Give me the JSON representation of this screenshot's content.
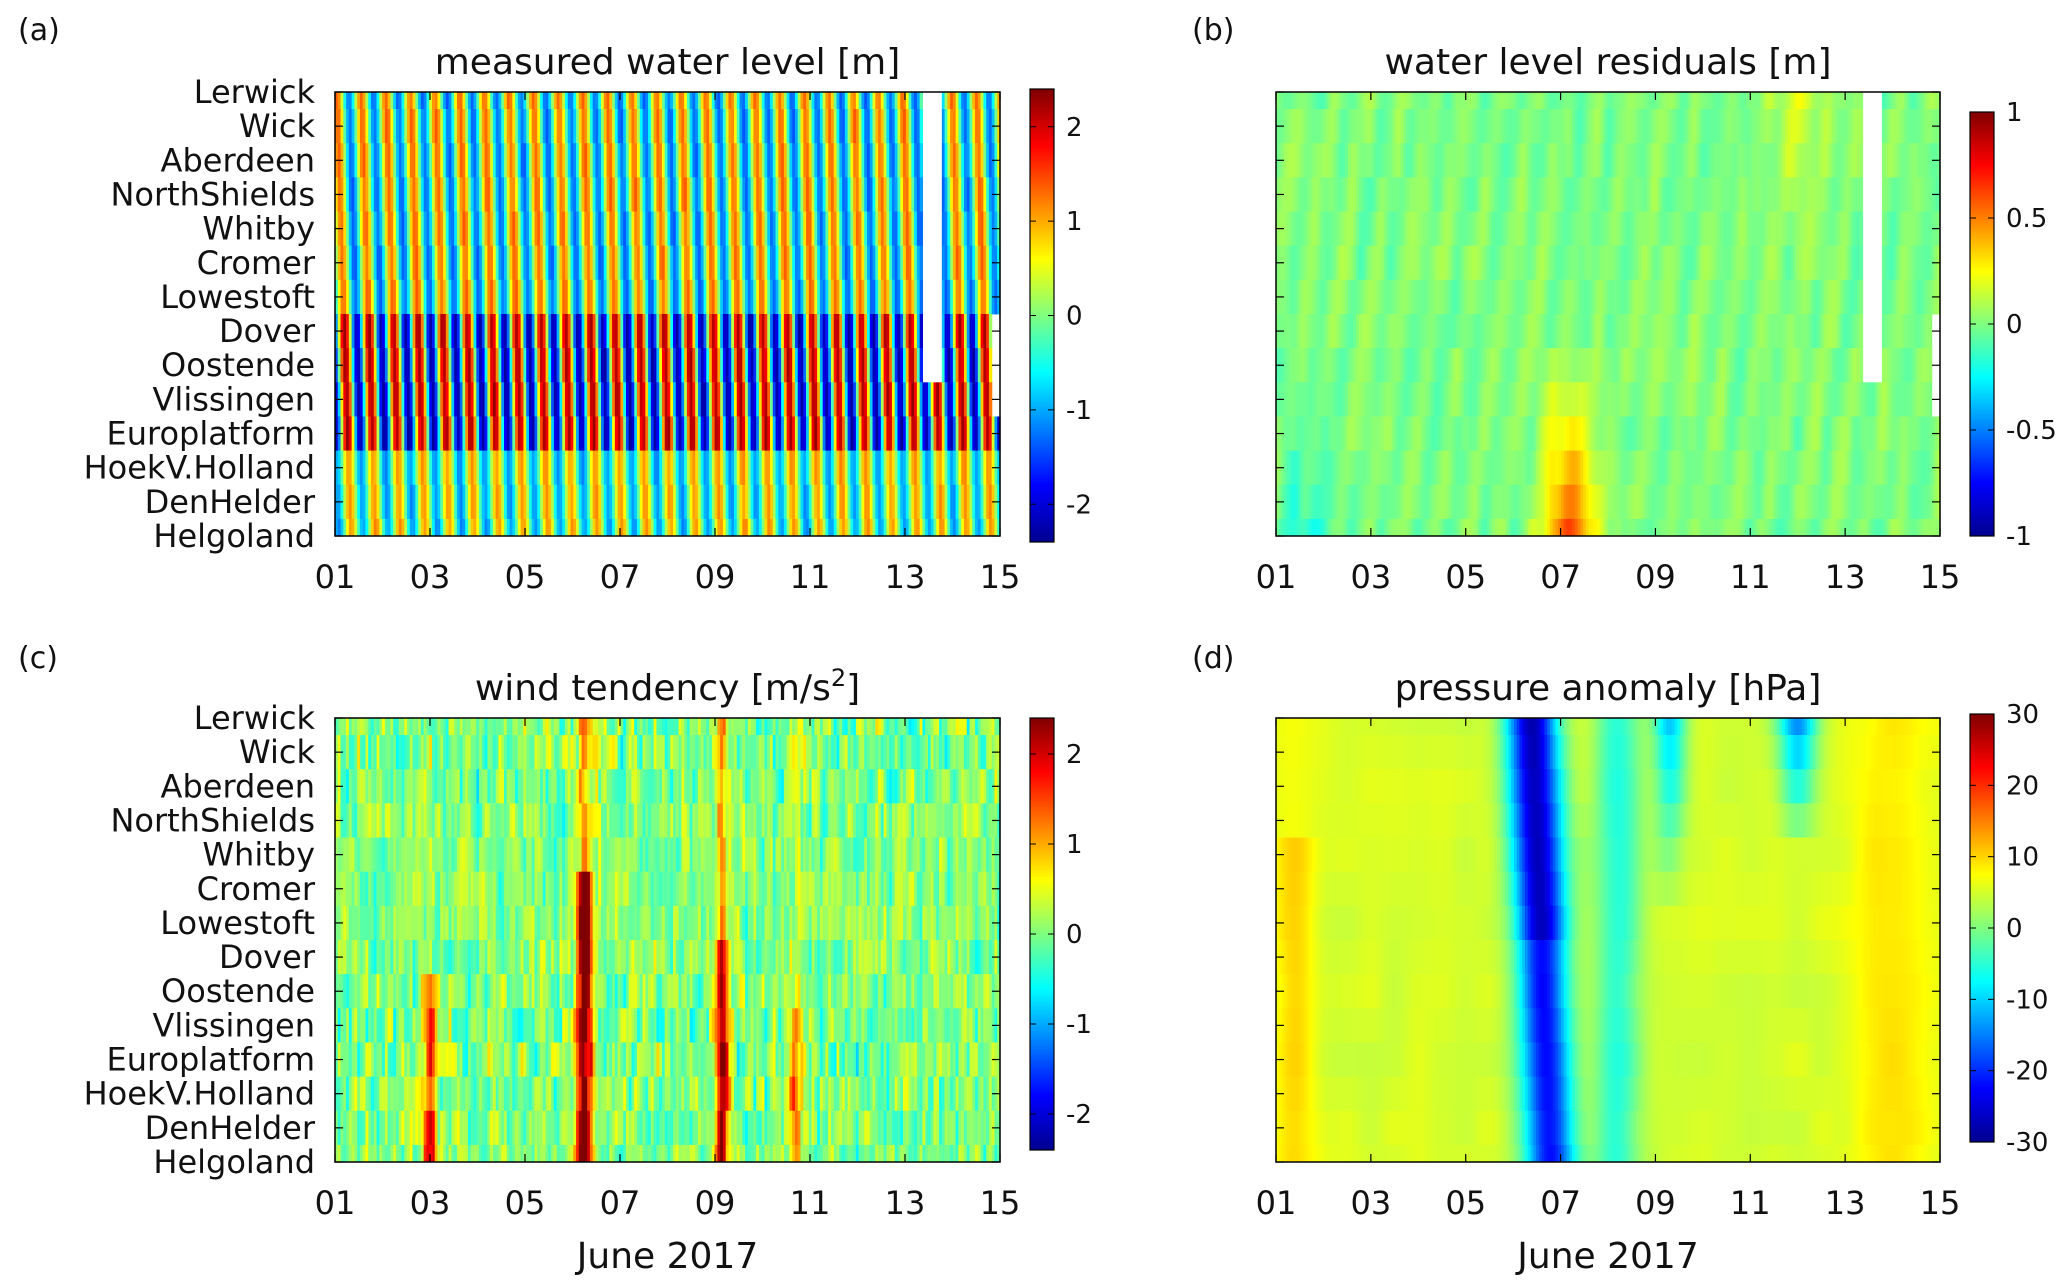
{
  "figure": {
    "month_label": "June 2017",
    "stations": [
      "Lerwick",
      "Wick",
      "Aberdeen",
      "NorthShields",
      "Whitby",
      "Cromer",
      "Lowestoft",
      "Dover",
      "Oostende",
      "Vlissingen",
      "Europlatform",
      "HoekV.Holland",
      "DenHelder",
      "Helgoland"
    ],
    "x_ticks": [
      "01",
      "03",
      "05",
      "07",
      "09",
      "11",
      "13",
      "15"
    ],
    "colormap": "jet",
    "colors": {
      "deep_blue": "#00008f",
      "blue": "#0000ff",
      "cyan": "#00ffff",
      "yellow": "#ffff00",
      "red": "#ff0000",
      "dark_red": "#800000",
      "background": "#ffffff"
    }
  },
  "chart_data": [
    {
      "panel": "(a)",
      "type": "heatmap",
      "title": "measured water level [m]",
      "xlabel": "",
      "y_categories": [
        "Lerwick",
        "Wick",
        "Aberdeen",
        "NorthShields",
        "Whitby",
        "Cromer",
        "Lowestoft",
        "Dover",
        "Oostende",
        "Vlissingen",
        "Europlatform",
        "HoekV.Holland",
        "DenHelder",
        "Helgoland"
      ],
      "x_ticks": [
        "01",
        "03",
        "05",
        "07",
        "09",
        "11",
        "13",
        "15"
      ],
      "xlim": [
        1,
        15
      ],
      "clim": [
        -2.4,
        2.4
      ],
      "colorbar_ticks": [
        "2",
        "1",
        "0",
        "-1",
        "-2"
      ],
      "colorbar_tick_values": [
        2,
        1,
        0,
        -1,
        -2
      ],
      "field": "semi-diurnal tidal oscillation, strongest amplitude at Dover/Oostende/Vlissingen, data gap around day 13.5 for northern stations"
    },
    {
      "panel": "(b)",
      "type": "heatmap",
      "title": "water level residuals [m]",
      "xlabel": "",
      "y_categories": [],
      "x_ticks": [
        "01",
        "03",
        "05",
        "07",
        "09",
        "11",
        "13",
        "15"
      ],
      "xlim": [
        1,
        15
      ],
      "clim": [
        -1,
        1
      ],
      "colorbar_ticks": [
        "1",
        "0.5",
        "0",
        "-0.5",
        "-1"
      ],
      "colorbar_tick_values": [
        1,
        0.5,
        0,
        -0.5,
        -1
      ],
      "field": "mostly near 0; positive surge (~0.6 m) around days 6.7-7.7 at southern stations"
    },
    {
      "panel": "(c)",
      "type": "heatmap",
      "title": "wind tendency [m/s",
      "title_sup": "2",
      "title_end": "]",
      "xlabel": "June 2017",
      "y_categories": [
        "Lerwick",
        "Wick",
        "Aberdeen",
        "NorthShields",
        "Whitby",
        "Cromer",
        "Lowestoft",
        "Dover",
        "Oostende",
        "Vlissingen",
        "Europlatform",
        "HoekV.Holland",
        "DenHelder",
        "Helgoland"
      ],
      "x_ticks": [
        "01",
        "03",
        "05",
        "07",
        "09",
        "11",
        "13",
        "15"
      ],
      "xlim": [
        1,
        15
      ],
      "clim": [
        -2.4,
        2.4
      ],
      "colorbar_ticks": [
        "2",
        "1",
        "0",
        "-1",
        "-2"
      ],
      "colorbar_tick_values": [
        2,
        1,
        0,
        -1,
        -2
      ],
      "field": "noisy; strong positive streaks near days 3, 6.2 and 9.1"
    },
    {
      "panel": "(d)",
      "type": "heatmap",
      "title": "pressure anomaly [hPa]",
      "xlabel": "June 2017",
      "y_categories": [],
      "x_ticks": [
        "01",
        "03",
        "05",
        "07",
        "09",
        "11",
        "13",
        "15"
      ],
      "xlim": [
        1,
        15
      ],
      "clim": [
        -30,
        30
      ],
      "colorbar_ticks": [
        "30",
        "20",
        "10",
        "0",
        "-10",
        "-20",
        "-30"
      ],
      "colorbar_tick_values": [
        30,
        20,
        10,
        0,
        -10,
        -20,
        -30
      ],
      "field": "low of about -28 hPa near day 6.5 in the north, lows near days 9.2 and 12 at northern stations, +10 hPa near day 1.5 and day 14"
    }
  ]
}
